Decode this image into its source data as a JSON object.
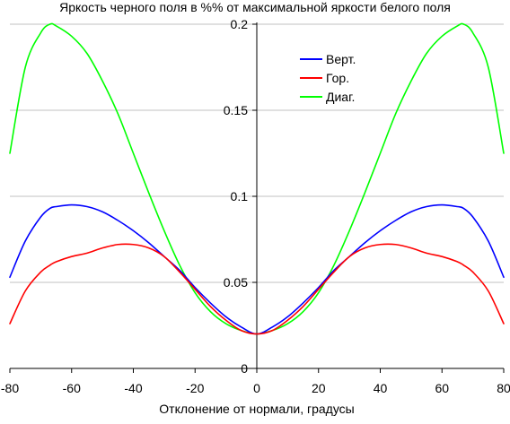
{
  "chart_data": {
    "type": "line",
    "title": "Яркость черного поля в %% от максимальной яркости белого поля",
    "xlabel": "Отклонение от нормали, градусы",
    "ylabel": "",
    "xlim": [
      -80,
      80
    ],
    "ylim": [
      0,
      0.2
    ],
    "x_ticks": [
      -80,
      -60,
      -40,
      -20,
      0,
      20,
      40,
      60,
      80
    ],
    "y_ticks": [
      0,
      0.05,
      0.1,
      0.15,
      0.2
    ],
    "x_tick_labels": [
      "-80",
      "-60",
      "-40",
      "-20",
      "0",
      "20",
      "40",
      "60",
      "80"
    ],
    "y_tick_labels": [
      "0",
      "0.05",
      "0.1",
      "0.15",
      "0.2"
    ],
    "grid": "horizontal",
    "legend_position": "top-right",
    "x": [
      -80,
      -75,
      -70,
      -67,
      -65,
      -60,
      -55,
      -50,
      -45,
      -40,
      -35,
      -30,
      -25,
      -20,
      -15,
      -10,
      -5,
      0,
      5,
      10,
      15,
      20,
      25,
      30,
      35,
      40,
      45,
      50,
      55,
      60,
      65,
      67,
      70,
      75,
      80
    ],
    "series": [
      {
        "name": "Верт.",
        "color": "#0000ff",
        "values": [
          0.053,
          0.074,
          0.088,
          0.093,
          0.094,
          0.095,
          0.094,
          0.091,
          0.086,
          0.08,
          0.073,
          0.065,
          0.057,
          0.047,
          0.038,
          0.03,
          0.024,
          0.02,
          0.024,
          0.03,
          0.038,
          0.047,
          0.057,
          0.065,
          0.073,
          0.08,
          0.086,
          0.091,
          0.094,
          0.095,
          0.094,
          0.093,
          0.088,
          0.074,
          0.053
        ]
      },
      {
        "name": "Гор.",
        "color": "#ff0000",
        "values": [
          0.026,
          0.045,
          0.056,
          0.06,
          0.062,
          0.065,
          0.067,
          0.07,
          0.072,
          0.072,
          0.07,
          0.065,
          0.056,
          0.046,
          0.036,
          0.028,
          0.022,
          0.02,
          0.022,
          0.028,
          0.036,
          0.046,
          0.056,
          0.065,
          0.07,
          0.072,
          0.072,
          0.07,
          0.067,
          0.065,
          0.062,
          0.06,
          0.056,
          0.045,
          0.026
        ]
      },
      {
        "name": "Диаг.",
        "color": "#00ff00",
        "values": [
          0.125,
          0.175,
          0.195,
          0.2,
          0.199,
          0.193,
          0.183,
          0.167,
          0.148,
          0.125,
          0.102,
          0.08,
          0.06,
          0.044,
          0.033,
          0.026,
          0.022,
          0.02,
          0.022,
          0.026,
          0.033,
          0.044,
          0.06,
          0.08,
          0.102,
          0.125,
          0.148,
          0.167,
          0.183,
          0.193,
          0.199,
          0.2,
          0.195,
          0.175,
          0.125
        ]
      }
    ]
  }
}
